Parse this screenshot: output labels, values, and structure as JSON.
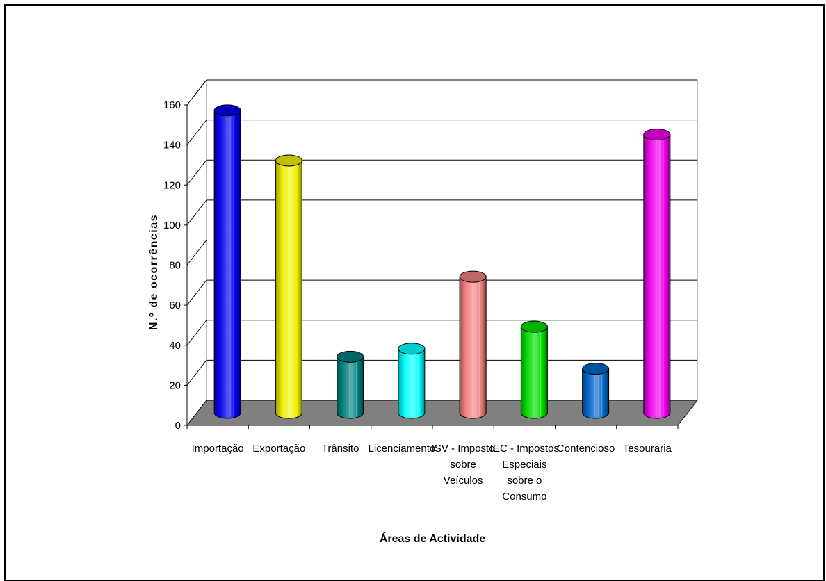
{
  "chart_data": {
    "type": "bar",
    "title": "",
    "xlabel": "Áreas de Actividade",
    "ylabel": "N.º de ocorrências",
    "ylim": [
      0,
      160
    ],
    "yticks": [
      0,
      20,
      40,
      60,
      80,
      100,
      120,
      140,
      160
    ],
    "categories": [
      "Importação",
      "Exportação",
      "Trânsito",
      "Licenciamento",
      "ISV - Imposto sobre Veículos",
      "IEC - Impostos Especiais sobre o Consumo",
      "Contencioso",
      "Tesouraria"
    ],
    "category_lines": [
      [
        "Importação"
      ],
      [
        "Exportação"
      ],
      [
        "Trânsito"
      ],
      [
        "Licenciamento"
      ],
      [
        "ISV - Imposto",
        "sobre",
        "Veículos"
      ],
      [
        "IEC - Impostos",
        "Especiais",
        "sobre o",
        "Consumo"
      ],
      [
        "Contencioso"
      ],
      [
        "Tesouraria"
      ]
    ],
    "values": [
      151,
      126,
      28,
      32,
      68,
      43,
      22,
      139
    ],
    "colors": [
      "#0000ee",
      "#f0f000",
      "#008080",
      "#00ffff",
      "#f08080",
      "#00e000",
      "#0066cc",
      "#ee00ee"
    ],
    "grid": true,
    "legend": "none",
    "style": "3d-cylinder",
    "floor_color": "#808080"
  }
}
